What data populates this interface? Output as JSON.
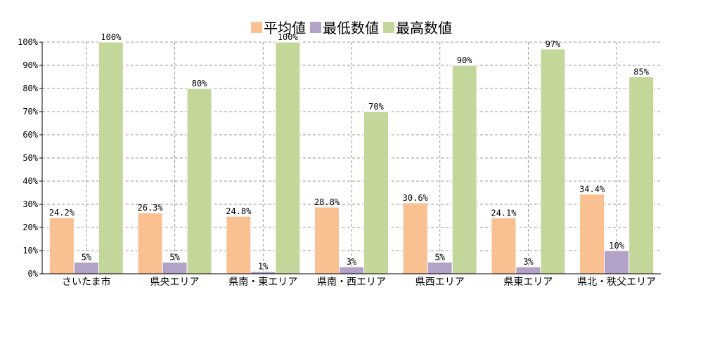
{
  "chart_data": {
    "type": "bar",
    "categories": [
      "さいたま市",
      "県央エリア",
      "県南・東エリア",
      "県南・西エリア",
      "県西エリア",
      "県東エリア",
      "県北・秩父エリア"
    ],
    "series": [
      {
        "name": "平均値",
        "color": "#f9c091",
        "values": [
          24.2,
          26.3,
          24.8,
          28.8,
          30.6,
          24.1,
          34.4
        ],
        "labels": [
          "24.2%",
          "26.3%",
          "24.8%",
          "28.8%",
          "30.6%",
          "24.1%",
          "34.4%"
        ]
      },
      {
        "name": "最低数値",
        "color": "#b3a2c8",
        "values": [
          5,
          5,
          1,
          3,
          5,
          3,
          10
        ],
        "labels": [
          "5%",
          "5%",
          "1%",
          "3%",
          "5%",
          "3%",
          "10%"
        ]
      },
      {
        "name": "最高数値",
        "color": "#c4d79b",
        "values": [
          100,
          80,
          100,
          70,
          90,
          97,
          85
        ],
        "labels": [
          "100%",
          "80%",
          "100%",
          "70%",
          "90%",
          "97%",
          "85%"
        ]
      }
    ],
    "ylim": [
      0,
      100
    ],
    "yticks": [
      "0%",
      "10%",
      "20%",
      "30%",
      "40%",
      "50%",
      "60%",
      "70%",
      "80%",
      "90%",
      "100%"
    ],
    "legend_position": "top-center",
    "grid": true
  }
}
